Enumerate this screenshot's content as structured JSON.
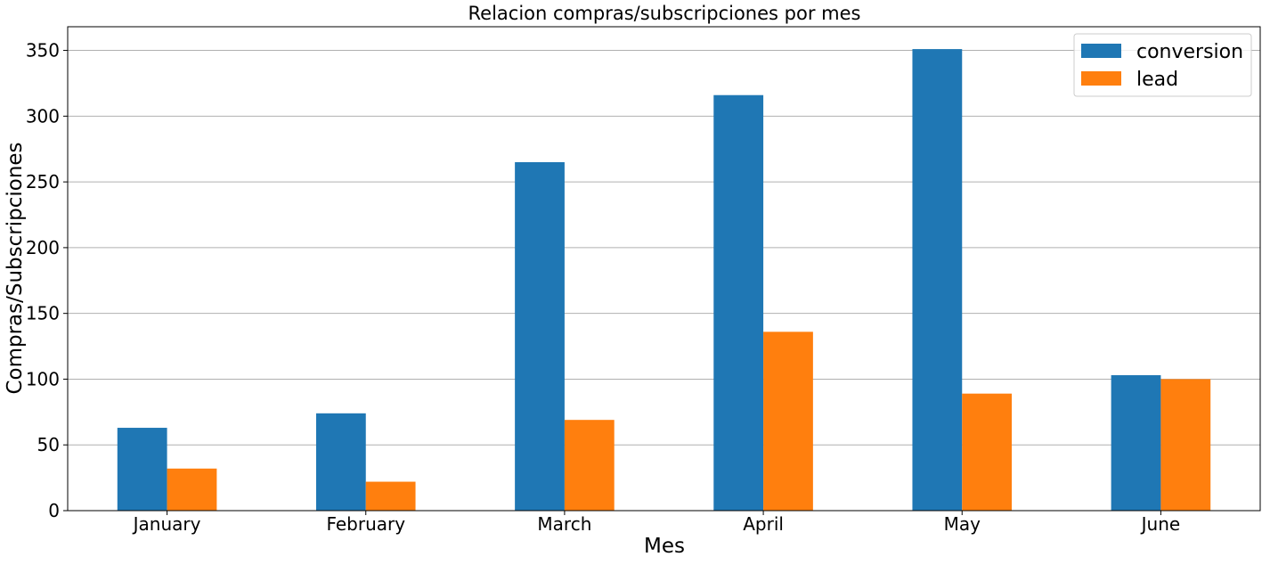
{
  "chart_data": {
    "type": "bar",
    "title": "Relacion compras/subscripciones por mes",
    "xlabel": "Mes",
    "ylabel": "Compras/Subscripciones",
    "categories": [
      "January",
      "February",
      "March",
      "April",
      "May",
      "June"
    ],
    "series": [
      {
        "name": "conversion",
        "values": [
          63,
          74,
          265,
          316,
          351,
          103
        ],
        "color": "#1f77b4"
      },
      {
        "name": "lead",
        "values": [
          32,
          22,
          69,
          136,
          89,
          100
        ],
        "color": "#ff7f0e"
      }
    ],
    "ylim": [
      0,
      368
    ],
    "yticks": [
      0,
      50,
      100,
      150,
      200,
      250,
      300,
      350
    ],
    "grid": "horizontal",
    "legend_position": "top-right"
  }
}
